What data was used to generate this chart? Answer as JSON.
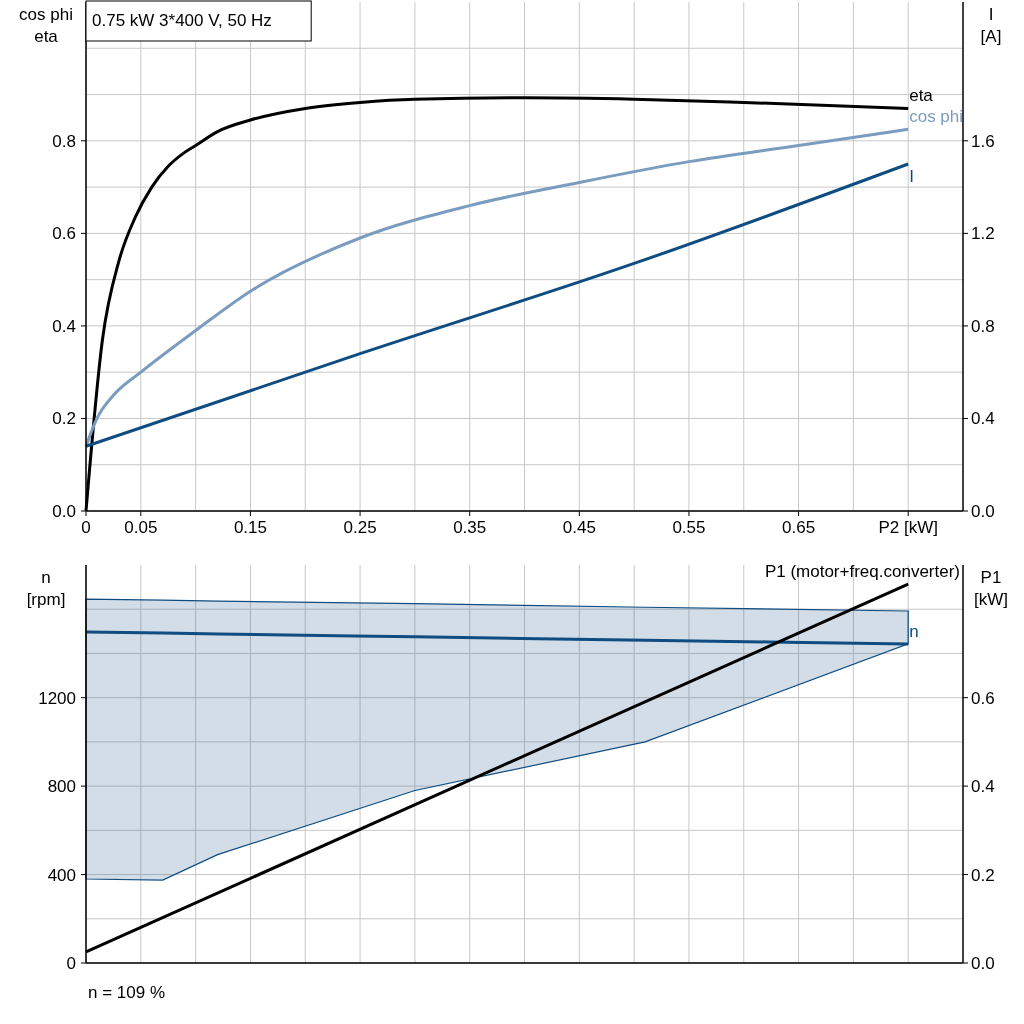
{
  "chart_data": [
    {
      "type": "line",
      "title": "0.75 kW   3*400 V, 50 Hz",
      "ylabel": "cos phi\neta",
      "y2label": "I\n[A]",
      "xlim": [
        0,
        0.8
      ],
      "xticks": [
        0,
        0.05,
        {
          "value": 0.1,
          "label": null
        },
        0.15,
        {
          "value": 0.2,
          "label": null
        },
        0.25,
        {
          "value": 0.3,
          "label": null
        },
        0.35,
        {
          "value": 0.4,
          "label": null
        },
        0.45,
        {
          "value": 0.5,
          "label": null
        },
        0.55,
        {
          "value": 0.6,
          "label": null
        },
        0.65,
        {
          "value": 0.7,
          "label": null
        },
        {
          "value": 0.75,
          "label": "P2 [kW]"
        }
      ],
      "ylim": [
        0,
        1.1
      ],
      "yticks": [
        {
          "value": 0,
          "label": "0.0"
        },
        {
          "value": 0.1,
          "label": null
        },
        0.2,
        {
          "value": 0.3,
          "label": null
        },
        0.4,
        {
          "value": 0.5,
          "label": null
        },
        0.6,
        {
          "value": 0.7,
          "label": null
        },
        0.8,
        {
          "value": 0.9,
          "label": null
        },
        {
          "value": 1.0,
          "label": null
        }
      ],
      "y2lim": [
        0,
        2.2
      ],
      "y2ticks": [
        {
          "value": 0,
          "label": "0.0"
        },
        0.4,
        0.8,
        1.2,
        1.6
      ],
      "grid": true,
      "series": [
        {
          "name": "eta",
          "color": "#000000",
          "x": [
            0,
            0.015,
            0.03,
            0.045,
            0.06,
            0.075,
            0.09,
            0.1,
            0.12,
            0.15,
            0.2,
            0.25,
            0.3,
            0.4,
            0.5,
            0.6,
            0.75
          ],
          "values": [
            0,
            0.37,
            0.54,
            0.635,
            0.7,
            0.745,
            0.775,
            0.79,
            0.82,
            0.845,
            0.87,
            0.883,
            0.89,
            0.893,
            0.89,
            0.883,
            0.87
          ]
        },
        {
          "name": "cos phi",
          "color": "#7a9cbf",
          "x": [
            0,
            0.01,
            0.025,
            0.05,
            0.1,
            0.15,
            0.25,
            0.35,
            0.45,
            0.55,
            0.65,
            0.75
          ],
          "values": [
            0.14,
            0.2,
            0.25,
            0.3,
            0.39,
            0.475,
            0.59,
            0.66,
            0.71,
            0.755,
            0.79,
            0.825
          ]
        },
        {
          "name": "I",
          "color": "#0f4c81",
          "axis": "y2",
          "x": [
            0,
            0.25,
            0.5,
            0.75
          ],
          "values": [
            0.28,
            0.68,
            1.07,
            1.5
          ]
        }
      ]
    },
    {
      "type": "line",
      "ylabel": "n\n[rpm]",
      "y2label": "P1\n[kW]",
      "xlim": [
        0,
        0.8
      ],
      "xticks": [
        0,
        0.05,
        {
          "value": 0.1,
          "label": null
        },
        0.15,
        {
          "value": 0.2,
          "label": null
        },
        0.25,
        {
          "value": 0.3,
          "label": null
        },
        0.35,
        {
          "value": 0.4,
          "label": null
        },
        0.45,
        {
          "value": 0.5,
          "label": null
        },
        0.55,
        {
          "value": 0.6,
          "label": null
        },
        0.65,
        {
          "value": 0.7,
          "label": null
        },
        0.75
      ],
      "tick_labels": "y",
      "ylim": [
        0,
        1800
      ],
      "yticks": [
        0,
        {
          "value": 200,
          "label": null
        },
        400,
        {
          "value": 600,
          "label": null
        },
        800,
        {
          "value": 1000,
          "label": null
        },
        1200,
        {
          "value": 1400,
          "label": null
        },
        {
          "value": 1600,
          "label": null
        }
      ],
      "y2lim": [
        0,
        0.9
      ],
      "y2ticks": [
        {
          "value": 0,
          "label": "0.0"
        },
        0.2,
        0.4,
        0.6
      ],
      "grid": true,
      "annotations": [
        "n = 109 %"
      ],
      "series": [
        {
          "name": "n",
          "color": "#0f4c81",
          "x": [
            0,
            0.07,
            0.12,
            0.3,
            0.51,
            0.75
          ],
          "values": [
            1497,
            1492,
            1488,
            1475,
            1460,
            1443
          ],
          "lower": [
            380,
            375,
            490,
            780,
            1000,
            1443
          ],
          "upper": [
            1646,
            1641,
            1637,
            1625,
            1609,
            1592
          ]
        },
        {
          "name": "P1 (motor+freq.converter)",
          "color": "#000000",
          "axis": "y2",
          "x": [
            0,
            0.75
          ],
          "values": [
            0.025,
            0.857
          ]
        }
      ]
    }
  ]
}
